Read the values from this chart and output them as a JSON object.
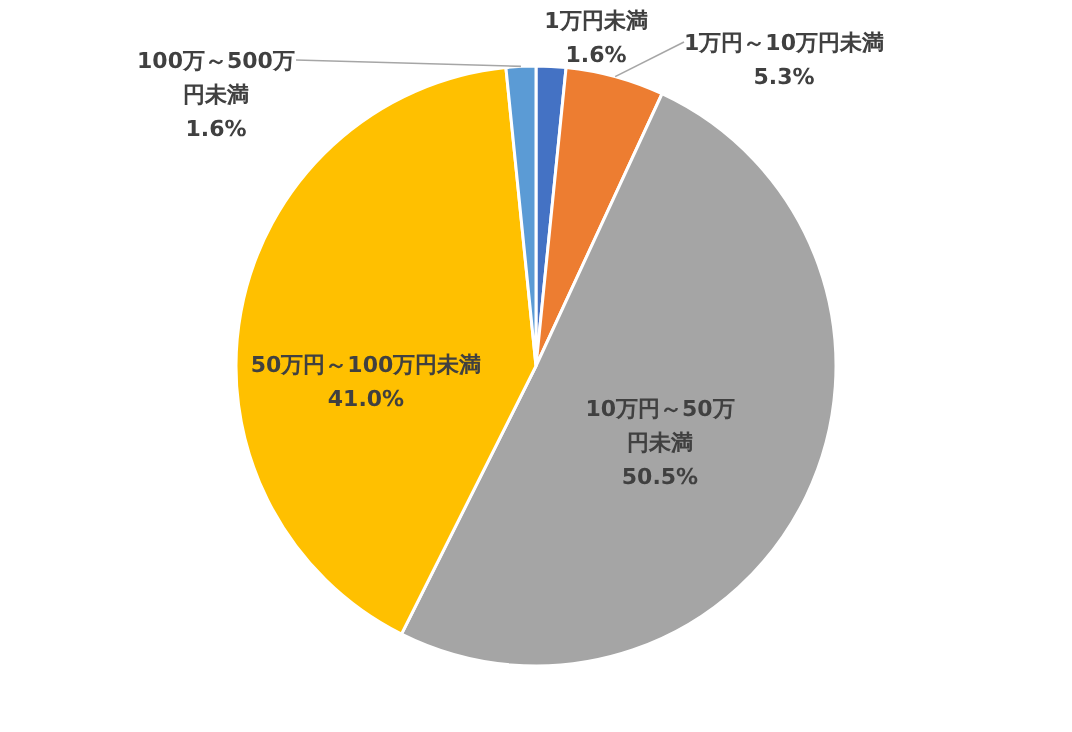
{
  "chart_data": {
    "type": "pie",
    "categories": [
      "1万円未満",
      "1万円～10万円未満",
      "10万円～50万円未満",
      "50万円～100万円未満",
      "100万～500万円未満"
    ],
    "values": [
      1.6,
      5.3,
      50.5,
      41.0,
      1.6
    ],
    "value_labels": [
      "1.6%",
      "5.3%",
      "50.5%",
      "41.0%",
      "1.6%"
    ],
    "colors": [
      "#4472c4",
      "#ed7d31",
      "#a5a5a5",
      "#ffc000",
      "#5b9bd5"
    ],
    "legend": false
  }
}
